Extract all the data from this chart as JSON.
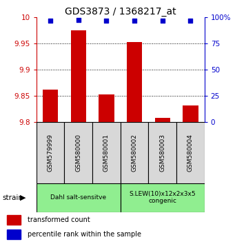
{
  "title": "GDS3873 / 1368217_at",
  "samples": [
    "GSM579999",
    "GSM580000",
    "GSM580001",
    "GSM580002",
    "GSM580003",
    "GSM580004"
  ],
  "red_values": [
    9.862,
    9.975,
    9.852,
    9.952,
    9.808,
    9.832
  ],
  "blue_values": [
    96.5,
    97.0,
    96.5,
    96.5,
    96.5,
    96.5
  ],
  "ylim_left": [
    9.8,
    10.0
  ],
  "ylim_right": [
    0,
    100
  ],
  "yticks_left": [
    9.8,
    9.85,
    9.9,
    9.95,
    10.0
  ],
  "yticks_right": [
    0,
    25,
    50,
    75,
    100
  ],
  "ytick_labels_left": [
    "9.8",
    "9.85",
    "9.9",
    "9.95",
    "10"
  ],
  "ytick_labels_right": [
    "0",
    "25",
    "50",
    "75",
    "100%"
  ],
  "groups": [
    {
      "label": "Dahl salt-sensitve",
      "start": 0,
      "end": 3,
      "color": "#90EE90"
    },
    {
      "label": "S.LEW(10)x12x2x3x5\ncongenic",
      "start": 3,
      "end": 6,
      "color": "#90EE90"
    }
  ],
  "strain_label": "strain",
  "legend_red": "transformed count",
  "legend_blue": "percentile rank within the sample",
  "bar_color": "#cc0000",
  "dot_color": "#0000cc",
  "bar_width": 0.55,
  "axis_color_left": "#cc0000",
  "axis_color_right": "#0000cc",
  "sample_bg_color": "#d8d8d8",
  "fig_width": 3.41,
  "fig_height": 3.54,
  "dpi": 100
}
